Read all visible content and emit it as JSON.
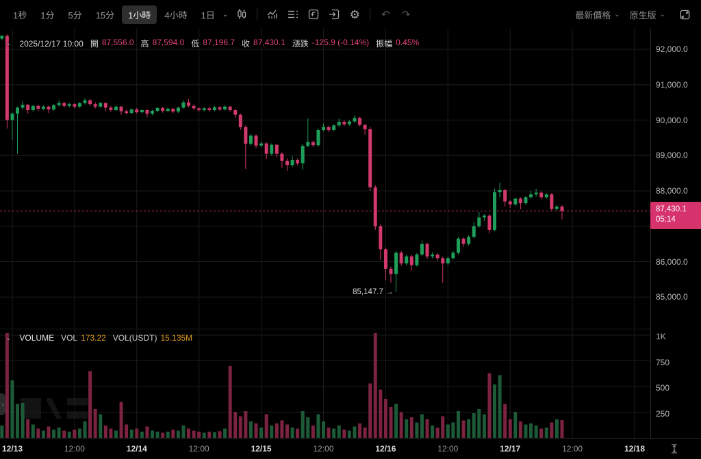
{
  "toolbar": {
    "intervals": [
      "1秒",
      "1分",
      "5分",
      "15分",
      "1小時",
      "4小時",
      "1日"
    ],
    "active_interval": "1小時",
    "price_mode": "最新價格",
    "version": "原生版"
  },
  "info_bar": {
    "date": "2025/12/17 10:00",
    "open_label": "開",
    "open": "87,556.0",
    "high_label": "高",
    "high": "87,594.0",
    "low_label": "低",
    "low": "87,196.7",
    "close_label": "收",
    "close": "87,430.1",
    "change_label": "漲跌",
    "change": "-125.9 (-0.14%)",
    "amplitude_label": "振幅",
    "amplitude": "0.45%"
  },
  "volume_header": {
    "title": "VOLUME",
    "vol_label": "VOL",
    "vol": "173.22",
    "vol_usdt_label": "VOL(USDT)",
    "vol_usdt": "15.135M"
  },
  "price_axis": {
    "labels": [
      {
        "text": "92,000.0",
        "price": 92000
      },
      {
        "text": "91,000.0",
        "price": 91000
      },
      {
        "text": "90,000.0",
        "price": 90000
      },
      {
        "text": "89,000.0",
        "price": 89000
      },
      {
        "text": "88,000.0",
        "price": 88000
      },
      {
        "text": "86,000.0",
        "price": 86000
      },
      {
        "text": "85,000.0",
        "price": 85000
      }
    ],
    "current": {
      "price": "87,430.1",
      "countdown": "05:14",
      "value": 87430.1
    }
  },
  "volume_axis": [
    {
      "text": "1K",
      "value": 1000
    },
    {
      "text": "750",
      "value": 750
    },
    {
      "text": "500",
      "value": 500
    },
    {
      "text": "250",
      "value": 250
    }
  ],
  "time_axis": [
    {
      "label": "12/13",
      "major": true
    },
    {
      "label": "12:00",
      "major": false
    },
    {
      "label": "12/14",
      "major": true
    },
    {
      "label": "12:00",
      "major": false
    },
    {
      "label": "12/15",
      "major": true
    },
    {
      "label": "12:00",
      "major": false
    },
    {
      "label": "12/16",
      "major": true
    },
    {
      "label": "12:00",
      "major": false
    },
    {
      "label": "12/17",
      "major": true
    },
    {
      "label": "12:00",
      "major": false
    },
    {
      "label": "12/18",
      "major": true
    }
  ],
  "annotations": {
    "low_text": "85,147.7",
    "low_arrow": "→",
    "low_price": 85147.7
  },
  "chart_data": {
    "type": "candlestick",
    "interval": "1h",
    "title": "BTC price 1h candles with volume",
    "price_axis_range": [
      84600,
      92600
    ],
    "volume_axis_range": [
      0,
      1000
    ],
    "colors": {
      "up": "#1f9e5a",
      "down": "#d13a6b",
      "vol_up": "#1d5a37",
      "vol_down": "#7c2340",
      "price_line": "#d6336c",
      "grid": "#1c1c1c"
    },
    "candles": [
      [
        92300,
        92400,
        92250,
        92380
      ],
      [
        92380,
        92420,
        89760,
        90000
      ],
      [
        90000,
        90220,
        89450,
        90180
      ],
      [
        90180,
        90380,
        89050,
        90350
      ],
      [
        90350,
        90520,
        90300,
        90430
      ],
      [
        90430,
        90460,
        90180,
        90280
      ],
      [
        90280,
        90430,
        90240,
        90400
      ],
      [
        90400,
        90440,
        90260,
        90320
      ],
      [
        90320,
        90420,
        90280,
        90380
      ],
      [
        90380,
        90410,
        90200,
        90300
      ],
      [
        90300,
        90450,
        90260,
        90420
      ],
      [
        90420,
        90560,
        90380,
        90480
      ],
      [
        90480,
        90520,
        90350,
        90400
      ],
      [
        90400,
        90490,
        90360,
        90450
      ],
      [
        90450,
        90480,
        90330,
        90380
      ],
      [
        90380,
        90500,
        90340,
        90480
      ],
      [
        90480,
        90620,
        90440,
        90560
      ],
      [
        90560,
        90600,
        90400,
        90450
      ],
      [
        90450,
        90500,
        90330,
        90380
      ],
      [
        90380,
        90510,
        90350,
        90480
      ],
      [
        90480,
        90500,
        90250,
        90350
      ],
      [
        90350,
        90400,
        90230,
        90280
      ],
      [
        90280,
        90410,
        90250,
        90380
      ],
      [
        90380,
        90400,
        90150,
        90250
      ],
      [
        90250,
        90300,
        90160,
        90200
      ],
      [
        90200,
        90330,
        90170,
        90300
      ],
      [
        90300,
        90340,
        90180,
        90220
      ],
      [
        90220,
        90310,
        90190,
        90280
      ],
      [
        90280,
        90300,
        90080,
        90180
      ],
      [
        90180,
        90290,
        90140,
        90260
      ],
      [
        90260,
        90370,
        90220,
        90340
      ],
      [
        90340,
        90370,
        90210,
        90260
      ],
      [
        90260,
        90350,
        90220,
        90320
      ],
      [
        90320,
        90350,
        90190,
        90240
      ],
      [
        90240,
        90380,
        90200,
        90350
      ],
      [
        90350,
        90560,
        90320,
        90500
      ],
      [
        90500,
        90600,
        90360,
        90400
      ],
      [
        90400,
        90440,
        90290,
        90330
      ],
      [
        90330,
        90360,
        90230,
        90280
      ],
      [
        90280,
        90360,
        90240,
        90330
      ],
      [
        90330,
        90360,
        90230,
        90280
      ],
      [
        90280,
        90400,
        90250,
        90360
      ],
      [
        90360,
        90390,
        90260,
        90300
      ],
      [
        90300,
        90420,
        90270,
        90380
      ],
      [
        90380,
        90400,
        90230,
        90280
      ],
      [
        90280,
        90310,
        90050,
        90150
      ],
      [
        90150,
        90180,
        89720,
        89800
      ],
      [
        89800,
        89850,
        88620,
        89330
      ],
      [
        89330,
        89600,
        89280,
        89560
      ],
      [
        89560,
        89590,
        89200,
        89280
      ],
      [
        89280,
        89400,
        89230,
        89340
      ],
      [
        89340,
        89370,
        88900,
        89050
      ],
      [
        89050,
        89340,
        89000,
        89300
      ],
      [
        89300,
        89330,
        88950,
        89050
      ],
      [
        89050,
        89090,
        88650,
        88850
      ],
      [
        88850,
        88920,
        88560,
        88730
      ],
      [
        88730,
        88980,
        88680,
        88870
      ],
      [
        88870,
        88910,
        88720,
        88780
      ],
      [
        88780,
        89320,
        88600,
        89270
      ],
      [
        89270,
        90050,
        89230,
        89380
      ],
      [
        89380,
        89420,
        89240,
        89290
      ],
      [
        89290,
        89760,
        89250,
        89720
      ],
      [
        89720,
        89900,
        89680,
        89800
      ],
      [
        89800,
        89840,
        89660,
        89720
      ],
      [
        89720,
        89880,
        89690,
        89850
      ],
      [
        89850,
        90040,
        89810,
        89950
      ],
      [
        89950,
        89990,
        89830,
        89880
      ],
      [
        89880,
        89990,
        89840,
        89960
      ],
      [
        89960,
        90140,
        89920,
        90060
      ],
      [
        90060,
        90090,
        89820,
        89860
      ],
      [
        89860,
        89890,
        89580,
        89740
      ],
      [
        89740,
        89800,
        88000,
        88100
      ],
      [
        88100,
        88160,
        86900,
        87000
      ],
      [
        87000,
        87060,
        86050,
        86350
      ],
      [
        86350,
        86400,
        85480,
        85800
      ],
      [
        85800,
        85860,
        85400,
        85650
      ],
      [
        85650,
        86300,
        85147.7,
        86250
      ],
      [
        86250,
        86300,
        85880,
        85950
      ],
      [
        85950,
        86200,
        85900,
        86150
      ],
      [
        86150,
        86190,
        85750,
        85900
      ],
      [
        85900,
        86240,
        85860,
        86200
      ],
      [
        86200,
        86600,
        86160,
        86500
      ],
      [
        86500,
        86540,
        86080,
        86150
      ],
      [
        86150,
        86260,
        86090,
        86200
      ],
      [
        86200,
        86240,
        86020,
        86100
      ],
      [
        86100,
        86140,
        85400,
        85950
      ],
      [
        85950,
        86150,
        85900,
        86100
      ],
      [
        86100,
        86300,
        86060,
        86250
      ],
      [
        86250,
        86700,
        86200,
        86650
      ],
      [
        86650,
        86690,
        86420,
        86500
      ],
      [
        86500,
        86750,
        86460,
        86700
      ],
      [
        86700,
        87120,
        86660,
        87000
      ],
      [
        87000,
        87400,
        86960,
        87250
      ],
      [
        87250,
        87340,
        87150,
        87300
      ],
      [
        87300,
        87340,
        86800,
        86900
      ],
      [
        86900,
        88060,
        86860,
        87960
      ],
      [
        87960,
        88230,
        87820,
        88020
      ],
      [
        88020,
        88060,
        87560,
        87700
      ],
      [
        87700,
        87740,
        87520,
        87620
      ],
      [
        87620,
        87800,
        87580,
        87780
      ],
      [
        87780,
        87820,
        87480,
        87650
      ],
      [
        87650,
        87860,
        87610,
        87820
      ],
      [
        87820,
        88000,
        87780,
        87900
      ],
      [
        87900,
        88060,
        87840,
        87950
      ],
      [
        87950,
        87990,
        87760,
        87820
      ],
      [
        87820,
        87930,
        87780,
        87900
      ],
      [
        87900,
        87940,
        87430,
        87490
      ],
      [
        87490,
        87600,
        87440,
        87556
      ],
      [
        87556,
        87594,
        87196.7,
        87430.1
      ]
    ],
    "volumes": [
      120,
      1020,
      560,
      330,
      340,
      180,
      130,
      90,
      70,
      110,
      80,
      100,
      70,
      60,
      80,
      90,
      160,
      650,
      280,
      230,
      120,
      90,
      70,
      350,
      130,
      80,
      90,
      60,
      110,
      70,
      60,
      50,
      60,
      80,
      70,
      120,
      90,
      70,
      60,
      50,
      60,
      55,
      65,
      90,
      700,
      250,
      210,
      260,
      160,
      140,
      100,
      230,
      120,
      140,
      170,
      130,
      100,
      90,
      260,
      200,
      120,
      230,
      160,
      100,
      90,
      120,
      80,
      70,
      110,
      140,
      100,
      530,
      1020,
      470,
      380,
      300,
      330,
      250,
      180,
      200,
      150,
      230,
      180,
      120,
      100,
      210,
      130,
      150,
      260,
      170,
      180,
      240,
      280,
      230,
      630,
      520,
      610,
      330,
      180,
      250,
      160,
      130,
      140,
      120,
      90,
      100,
      150,
      180,
      173.22
    ]
  }
}
